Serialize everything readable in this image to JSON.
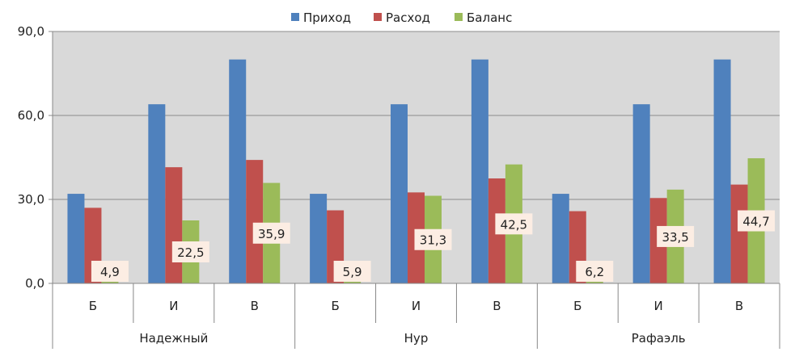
{
  "chart_data": {
    "type": "bar",
    "legend_position": "top",
    "grid": true,
    "ylim": [
      0,
      90
    ],
    "y_ticks": [
      "0,0",
      "30,0",
      "60,0",
      "90,0"
    ],
    "y_tick_values": [
      0,
      30,
      60,
      90
    ],
    "groups": [
      "Надежный",
      "Нур",
      "Рафаэль"
    ],
    "categories": [
      "Б",
      "И",
      "В",
      "Б",
      "И",
      "В",
      "Б",
      "И",
      "В"
    ],
    "series": [
      {
        "name": "Приход",
        "color": "#4F81BD",
        "values": [
          32,
          64,
          80,
          32,
          64,
          80,
          32,
          64,
          80
        ]
      },
      {
        "name": "Расход",
        "color": "#C0504D",
        "values": [
          27,
          41.5,
          44.1,
          26.1,
          32.5,
          37.5,
          25.8,
          30.5,
          35.3
        ]
      },
      {
        "name": "Баланс",
        "color": "#9BBB59",
        "values": [
          4.9,
          22.5,
          35.9,
          5.9,
          31.3,
          42.5,
          6.2,
          33.5,
          44.7
        ],
        "data_labels": [
          "4,9",
          "22,5",
          "35,9",
          "5,9",
          "31,3",
          "42,5",
          "6,2",
          "33,5",
          "44,7"
        ]
      }
    ],
    "colors": {
      "plot_background": "#D9D9D9",
      "gridline": "#8C8C8C",
      "label_box": "#FCEDE3"
    }
  }
}
